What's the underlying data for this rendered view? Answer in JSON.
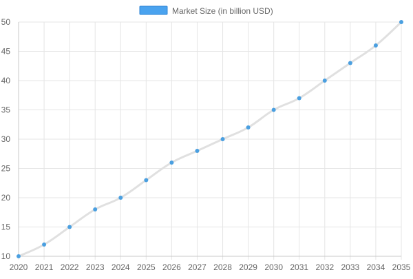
{
  "chart_data": {
    "type": "line",
    "categories": [
      "2020",
      "2021",
      "2022",
      "2023",
      "2024",
      "2025",
      "2026",
      "2027",
      "2028",
      "2029",
      "2030",
      "2031",
      "2032",
      "2033",
      "2034",
      "2035"
    ],
    "series": [
      {
        "name": "Market Size (in billion USD)",
        "values": [
          10,
          12,
          15,
          18,
          20,
          23,
          26,
          28,
          30,
          32,
          35,
          37,
          40,
          43,
          46,
          50
        ]
      }
    ],
    "ylim": [
      10,
      50
    ],
    "yticks": [
      10,
      15,
      20,
      25,
      30,
      35,
      40,
      45,
      50
    ],
    "grid": true,
    "legend": "top-center"
  },
  "colors": {
    "point": "#4a9fe0",
    "line": "#e0e0e0",
    "legend_fill": "#4aa3ef",
    "legend_border": "#2f86d6",
    "grid": "#e5e5e5",
    "axis": "#c8c8c8",
    "text": "#666666"
  }
}
